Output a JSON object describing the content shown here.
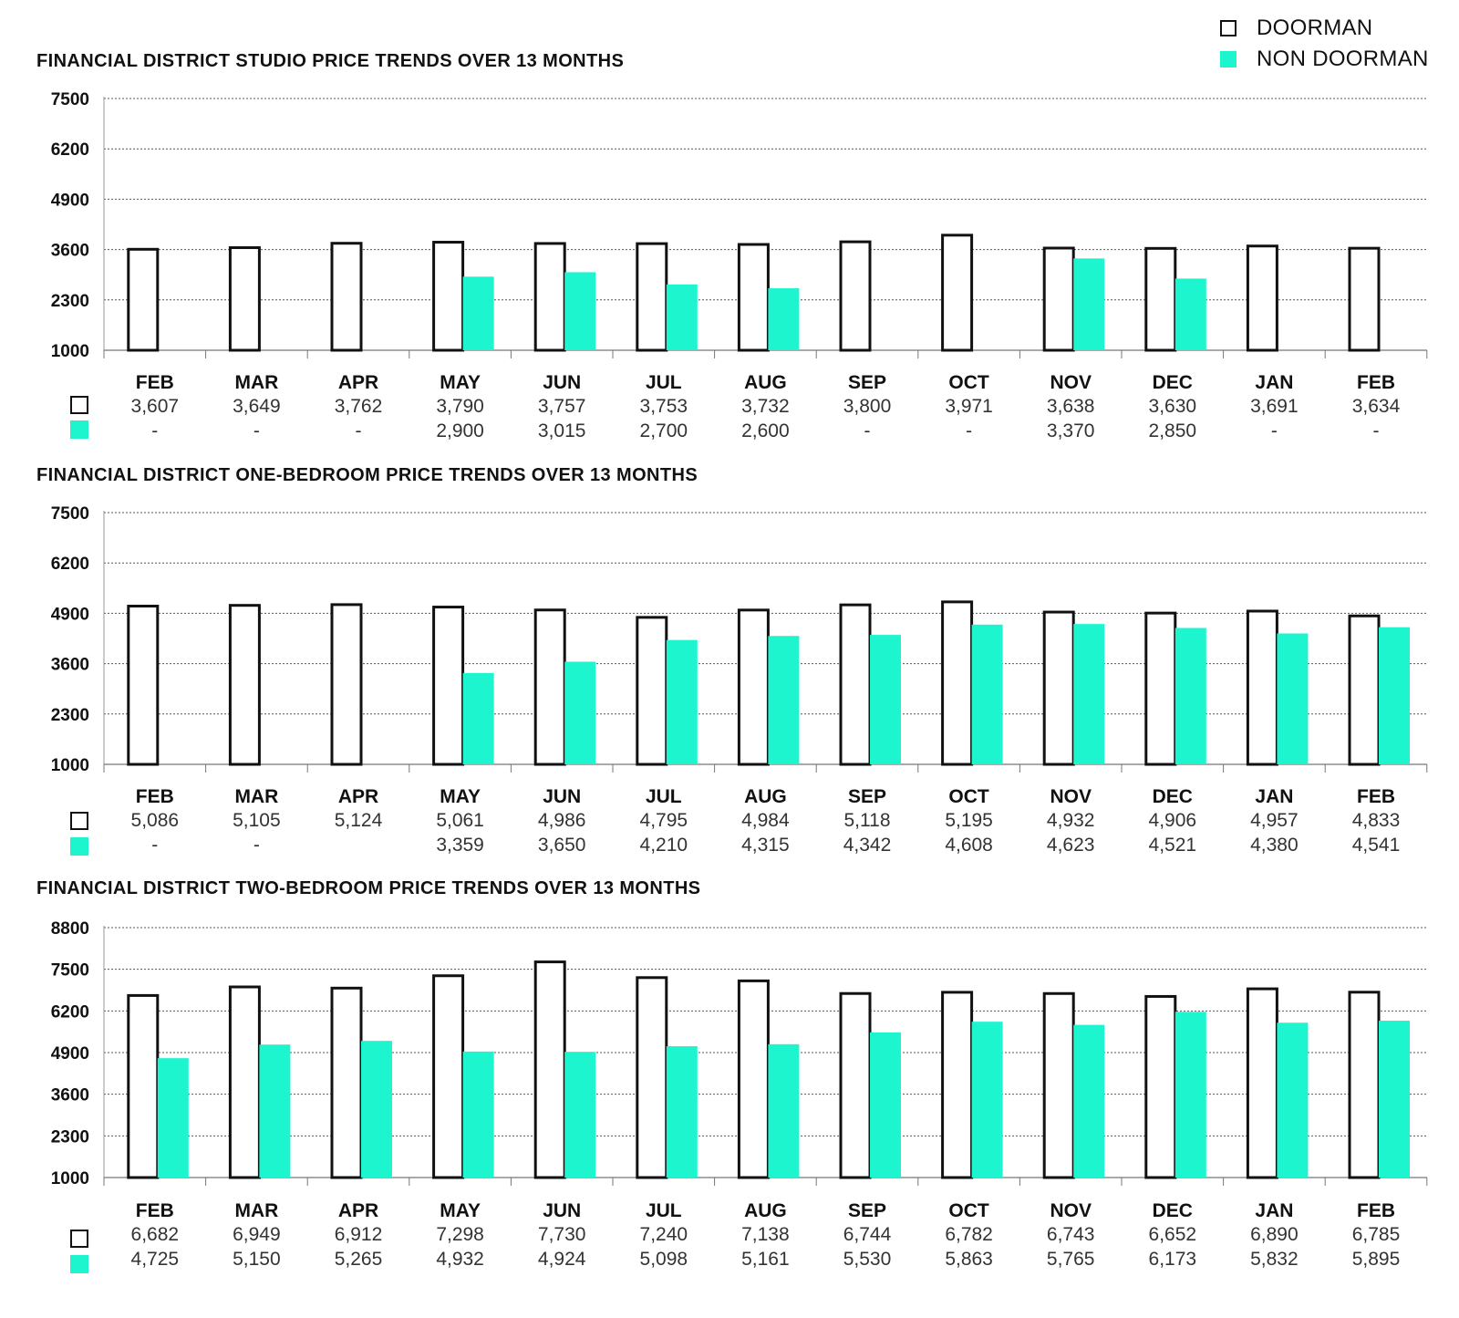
{
  "legend": {
    "doorman": "DOORMAN",
    "non_doorman": "NON DOORMAN",
    "doorman_color": "#ffffff",
    "non_doorman_color": "#1df5cf"
  },
  "chart_data": [
    {
      "type": "bar",
      "title": "FINANCIAL DISTRICT STUDIO PRICE TRENDS OVER 13 MONTHS",
      "categories": [
        "FEB",
        "MAR",
        "APR",
        "MAY",
        "JUN",
        "JUL",
        "AUG",
        "SEP",
        "OCT",
        "NOV",
        "DEC",
        "JAN",
        "FEB"
      ],
      "yticks": [
        "7500",
        "6200",
        "4900",
        "3600",
        "2300",
        "1000"
      ],
      "ylim": [
        1000,
        7500
      ],
      "series": [
        {
          "name": "DOORMAN",
          "values": [
            3607,
            3649,
            3762,
            3790,
            3757,
            3753,
            3732,
            3800,
            3971,
            3638,
            3630,
            3691,
            3634
          ],
          "labels": [
            "3,607",
            "3,649",
            "3,762",
            "3,790",
            "3,757",
            "3,753",
            "3,732",
            "3,800",
            "3,971",
            "3,638",
            "3,630",
            "3,691",
            "3,634"
          ]
        },
        {
          "name": "NON DOORMAN",
          "values": [
            null,
            null,
            null,
            2900,
            3015,
            2700,
            2600,
            null,
            null,
            3370,
            2850,
            null,
            null
          ],
          "labels": [
            "-",
            "-",
            "-",
            "2,900",
            "3,015",
            "2,700",
            "2,600",
            "-",
            "-",
            "3,370",
            "2,850",
            "-",
            "-"
          ]
        }
      ]
    },
    {
      "type": "bar",
      "title": "FINANCIAL DISTRICT ONE-BEDROOM PRICE TRENDS OVER 13 MONTHS",
      "categories": [
        "FEB",
        "MAR",
        "APR",
        "MAY",
        "JUN",
        "JUL",
        "AUG",
        "SEP",
        "OCT",
        "NOV",
        "DEC",
        "JAN",
        "FEB"
      ],
      "yticks": [
        "7500",
        "6200",
        "4900",
        "3600",
        "2300",
        "1000"
      ],
      "ylim": [
        1000,
        7500
      ],
      "series": [
        {
          "name": "DOORMAN",
          "values": [
            5086,
            5105,
            5124,
            5061,
            4986,
            4795,
            4984,
            5118,
            5195,
            4932,
            4906,
            4957,
            4833
          ],
          "labels": [
            "5,086",
            "5,105",
            "5,124",
            "5,061",
            "4,986",
            "4,795",
            "4,984",
            "5,118",
            "5,195",
            "4,932",
            "4,906",
            "4,957",
            "4,833"
          ]
        },
        {
          "name": "NON DOORMAN",
          "values": [
            null,
            null,
            null,
            3359,
            3650,
            4210,
            4315,
            4342,
            4608,
            4623,
            4521,
            4380,
            4541
          ],
          "labels": [
            "-",
            "-",
            "",
            "3,359",
            "3,650",
            "4,210",
            "4,315",
            "4,342",
            "4,608",
            "4,623",
            "4,521",
            "4,380",
            "4,541"
          ]
        }
      ]
    },
    {
      "type": "bar",
      "title": "FINANCIAL DISTRICT TWO-BEDROOM PRICE TRENDS OVER 13 MONTHS",
      "categories": [
        "FEB",
        "MAR",
        "APR",
        "MAY",
        "JUN",
        "JUL",
        "AUG",
        "SEP",
        "OCT",
        "NOV",
        "DEC",
        "JAN",
        "FEB"
      ],
      "yticks": [
        "8800",
        "7500",
        "6200",
        "4900",
        "3600",
        "2300",
        "1000"
      ],
      "ylim": [
        1000,
        8800
      ],
      "series": [
        {
          "name": "DOORMAN",
          "values": [
            6682,
            6949,
            6912,
            7298,
            7730,
            7240,
            7138,
            6744,
            6782,
            6743,
            6652,
            6890,
            6785
          ],
          "labels": [
            "6,682",
            "6,949",
            "6,912",
            "7,298",
            "7,730",
            "7,240",
            "7,138",
            "6,744",
            "6,782",
            "6,743",
            "6,652",
            "6,890",
            "6,785"
          ]
        },
        {
          "name": "NON DOORMAN",
          "values": [
            4725,
            5150,
            5265,
            4932,
            4924,
            5098,
            5161,
            5530,
            5863,
            5765,
            6173,
            5832,
            5895
          ],
          "labels": [
            "4,725",
            "5,150",
            "5,265",
            "4,932",
            "4,924",
            "5,098",
            "5,161",
            "5,530",
            "5,863",
            "5,765",
            "6,173",
            "5,832",
            "5,895"
          ]
        }
      ]
    }
  ]
}
